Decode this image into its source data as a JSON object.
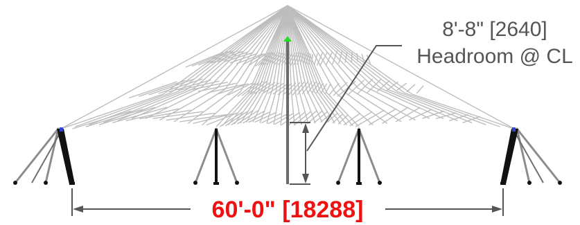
{
  "headroom": {
    "line1": "8'-8\" [2640]",
    "line2": "Headroom @ CL"
  },
  "span": {
    "label": "60'-0\" [18288]",
    "color": "#ee1111"
  },
  "colors": {
    "fabric": "#bdbdbd",
    "pole": "#111111",
    "top_marker": "#22dd22",
    "corner_marker": "#3344cc"
  }
}
